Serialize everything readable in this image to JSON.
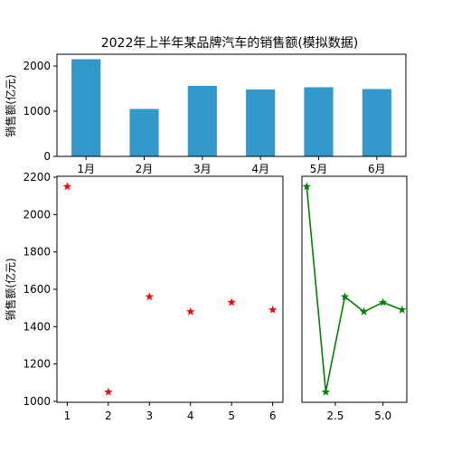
{
  "chart_data": [
    {
      "type": "bar",
      "title": "2022年上半年某品牌汽车的销售额(模拟数据)",
      "ylabel": "销售额(亿元)",
      "categories": [
        "1月",
        "2月",
        "3月",
        "4月",
        "5月",
        "6月"
      ],
      "values": [
        2150,
        1050,
        1560,
        1480,
        1530,
        1490
      ],
      "ylim": [
        0,
        2260
      ],
      "yticks": [
        0,
        1000,
        2000
      ],
      "color": "#3399cc"
    },
    {
      "type": "scatter",
      "ylabel": "销售额(亿元)",
      "x": [
        1,
        2,
        3,
        4,
        5,
        6
      ],
      "values": [
        2150,
        1050,
        1560,
        1480,
        1530,
        1490
      ],
      "xlim": [
        0.75,
        6.25
      ],
      "ylim": [
        995,
        2205
      ],
      "xticks": [
        1,
        2,
        3,
        4,
        5,
        6
      ],
      "yticks": [
        1000,
        1200,
        1400,
        1600,
        1800,
        2000,
        2200
      ],
      "marker": "star",
      "color": "#ff0000"
    },
    {
      "type": "line",
      "x": [
        1,
        2,
        3,
        4,
        5,
        6
      ],
      "values": [
        2150,
        1050,
        1560,
        1480,
        1530,
        1490
      ],
      "xlim": [
        0.75,
        6.25
      ],
      "ylim": [
        995,
        2205
      ],
      "xticks": [
        2.5,
        5.0
      ],
      "xtick_labels": [
        "2.5",
        "5.0"
      ],
      "marker": "star",
      "color": "#008000"
    }
  ]
}
